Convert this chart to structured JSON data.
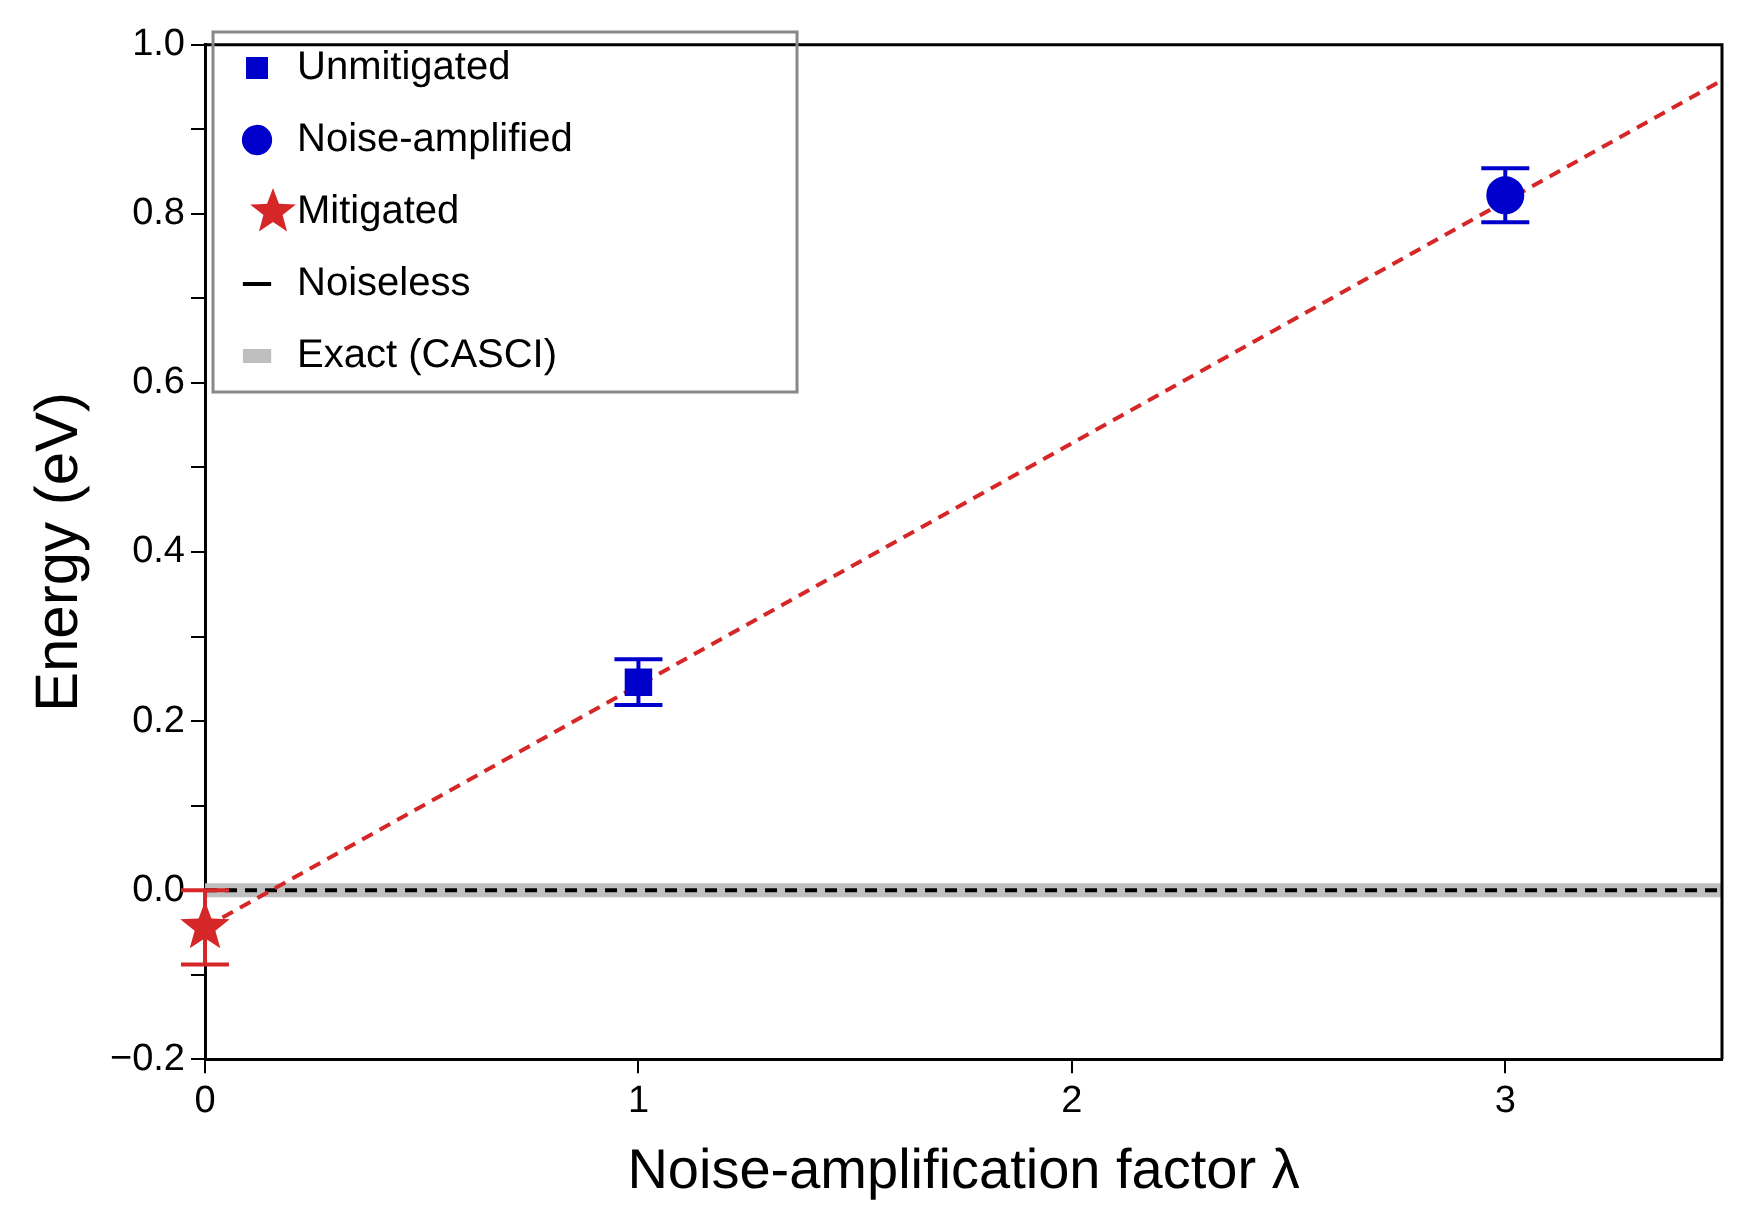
{
  "chart_data": {
    "type": "scatter",
    "xlabel": "Noise-amplification factor λ",
    "ylabel": "Energy (eV)",
    "xlim": [
      0,
      3.5
    ],
    "xticks": [
      0,
      1,
      2,
      3
    ],
    "ylim": [
      -0.2,
      1.0
    ],
    "yticks": [
      {
        "value": -0.2,
        "label": "−0.2"
      },
      {
        "value": -0.1,
        "label": null
      },
      {
        "value": 0.0,
        "label": "0.0"
      },
      {
        "value": 0.1,
        "label": null
      },
      0.2,
      {
        "value": 0.3,
        "label": null
      },
      0.4,
      {
        "value": 0.5,
        "label": null
      },
      0.6,
      {
        "value": 0.7,
        "label": null
      },
      0.8,
      {
        "value": 0.9,
        "label": null
      },
      {
        "value": 1.0,
        "label": "1.0"
      }
    ],
    "grid": false,
    "legend": "top left",
    "series": [
      {
        "name": "Unmitigated",
        "marker": "square",
        "color": "#0000cc",
        "x": [
          1
        ],
        "values": [
          0.246
        ],
        "errors": [
          0.027
        ]
      },
      {
        "name": "Noise-amplified",
        "marker": "circle",
        "color": "#0000cc",
        "x": [
          3
        ],
        "values": [
          0.822
        ],
        "errors": [
          0.032
        ]
      },
      {
        "name": "Mitigated",
        "marker": "star",
        "color": "#d62728",
        "x": [
          0
        ],
        "values": [
          -0.044
        ],
        "errors": [
          0.044
        ]
      },
      {
        "type": "line",
        "marker": "none",
        "line_style": "dashed",
        "color": "#d62728",
        "x": [
          0,
          3.5
        ],
        "values": [
          -0.044,
          0.958
        ]
      }
    ],
    "ref_lines": [
      {
        "axis": "y",
        "value": 0,
        "label": "Noiseless",
        "color": "#000000",
        "line_style": "dashed"
      },
      {
        "axis": "y",
        "value": 0,
        "label": "Exact (CASCI)",
        "color": "#bfbfbf",
        "line_style": "solid"
      }
    ]
  }
}
